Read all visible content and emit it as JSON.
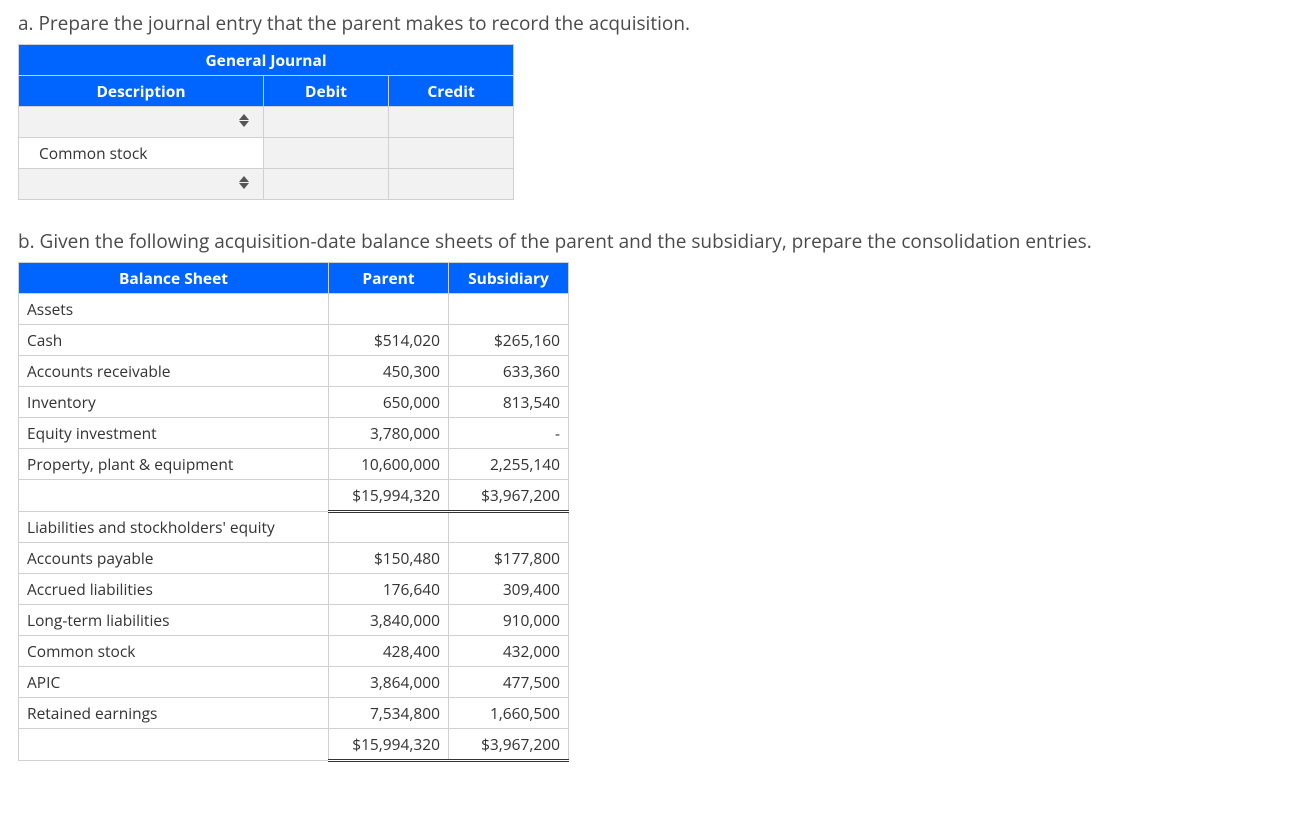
{
  "partA": {
    "prompt": "a. Prepare the journal entry that the parent makes to record the acquisition.",
    "journal": {
      "title": "General Journal",
      "cols": [
        "Description",
        "Debit",
        "Credit"
      ],
      "rows": [
        {
          "desc": "",
          "debit": "",
          "credit": "",
          "hasSelector": true
        },
        {
          "desc": "Common stock",
          "debit": "",
          "credit": "",
          "hasSelector": false
        },
        {
          "desc": "",
          "debit": "",
          "credit": "",
          "hasSelector": true
        }
      ]
    }
  },
  "partB": {
    "prompt": "b. Given the following acquisition-date balance sheets of the parent and the subsidiary, prepare the consolidation entries.",
    "balanceSheet": {
      "title": "Balance Sheet",
      "cols": [
        "Parent",
        "Subsidiary"
      ],
      "sections": [
        {
          "heading": "Assets",
          "rows": [
            {
              "label": "Cash",
              "parent": "$514,020",
              "sub": "$265,160"
            },
            {
              "label": "Accounts receivable",
              "parent": "450,300",
              "sub": "633,360"
            },
            {
              "label": "Inventory",
              "parent": "650,000",
              "sub": "813,540"
            },
            {
              "label": "Equity investment",
              "parent": "3,780,000",
              "sub": "-"
            },
            {
              "label": "Property, plant & equipment",
              "parent": "10,600,000",
              "sub": "2,255,140"
            }
          ],
          "total": {
            "parent": "$15,994,320",
            "sub": "$3,967,200"
          }
        },
        {
          "heading": "Liabilities and stockholders' equity",
          "rows": [
            {
              "label": "Accounts payable",
              "parent": "$150,480",
              "sub": "$177,800"
            },
            {
              "label": "Accrued liabilities",
              "parent": "176,640",
              "sub": "309,400"
            },
            {
              "label": "Long-term liabilities",
              "parent": "3,840,000",
              "sub": "910,000"
            },
            {
              "label": "Common stock",
              "parent": "428,400",
              "sub": "432,000"
            },
            {
              "label": "APIC",
              "parent": "3,864,000",
              "sub": "477,500"
            },
            {
              "label": "Retained earnings",
              "parent": "7,534,800",
              "sub": "1,660,500"
            }
          ],
          "total": {
            "parent": "$15,994,320",
            "sub": "$3,967,200"
          }
        }
      ]
    }
  }
}
